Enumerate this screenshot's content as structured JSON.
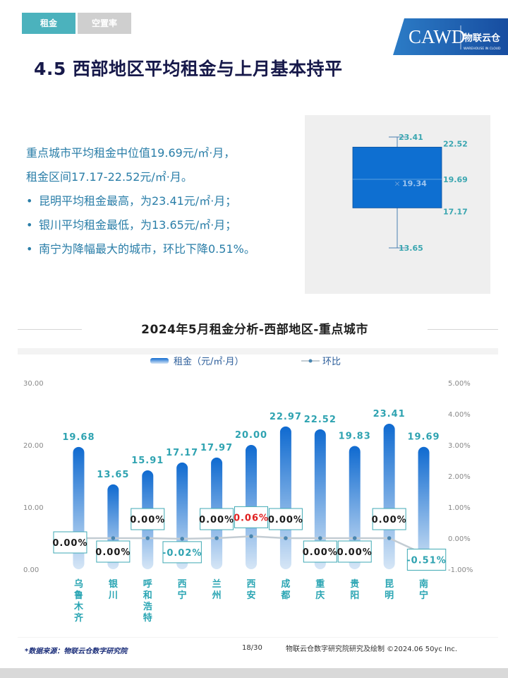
{
  "tabs": [
    {
      "label": "租金"
    },
    {
      "label": "空置率"
    }
  ],
  "logo": {
    "text": "CAWD",
    "sub": "物联云仓",
    "sub2": "WAREHOUSE IN CLOUD"
  },
  "heading": "4.5 西部地区平均租金与上月基本持平",
  "summary": {
    "line1": "重点城市平均租金中位值19.69元/㎡·月，",
    "line2": "租金区间17.17-22.52元/㎡·月。",
    "bullets": [
      "昆明平均租金最高，为23.41元/㎡·月；",
      "银川平均租金最低，为13.65元/㎡·月；",
      "南宁为降幅最大的城市，环比下降0.51%。"
    ]
  },
  "boxplot": {
    "max": 23.41,
    "q3": 22.52,
    "median": 19.69,
    "mean": 19.34,
    "q1": 17.17,
    "min": 13.65,
    "max_label": "23.41",
    "q3_label": "22.52",
    "median_label": "19.69",
    "mean_label": "19.34",
    "q1_label": "17.17",
    "min_label": "13.65",
    "colors": {
      "box": "#0e6fd1",
      "label": "#3aa6b0"
    }
  },
  "section_title": "2024年5月租金分析-西部地区-重点城市",
  "chart_data": {
    "type": "bar",
    "title": "2024年5月租金分析-西部地区-重点城市",
    "categories": [
      "乌鲁木齐",
      "银川",
      "呼和浩特",
      "西宁",
      "兰州",
      "西安",
      "成都",
      "重庆",
      "贵阳",
      "昆明",
      "南宁"
    ],
    "series": [
      {
        "name": "租金（元/㎡·月）",
        "type": "bar",
        "axis": "left",
        "values": [
          19.68,
          13.65,
          15.91,
          17.17,
          17.97,
          20.0,
          22.97,
          22.52,
          19.83,
          23.41,
          19.69
        ],
        "labels": [
          "19.68",
          "13.65",
          "15.91",
          "17.17",
          "17.97",
          "20.00",
          "22.97",
          "22.52",
          "19.83",
          "23.41",
          "19.69"
        ]
      },
      {
        "name": "环比",
        "type": "line",
        "axis": "right",
        "values": [
          0.0,
          0.0,
          0.0,
          -0.02,
          0.0,
          0.06,
          0.0,
          0.0,
          0.0,
          0.0,
          -0.51
        ],
        "labels": [
          "0.00%",
          "0.00%",
          "0.00%",
          "-0.02%",
          "0.00%",
          "0.06%",
          "0.00%",
          "0.00%",
          "0.00%",
          "0.00%",
          "-0.51%"
        ]
      }
    ],
    "y_left": {
      "min": 0,
      "max": 30,
      "ticks": [
        "0.00",
        "10.00",
        "20.00",
        "30.00"
      ]
    },
    "y_right": {
      "min": -1,
      "max": 5,
      "ticks": [
        "-1.00%",
        "0.00%",
        "1.00%",
        "2.00%",
        "3.00%",
        "4.00%",
        "5.00%"
      ]
    },
    "legend_position": "top",
    "grid": false,
    "colors": {
      "bar_top": "#0f6ad0",
      "bar_bottom": "#d6e6f6",
      "line": "#c3ccd3",
      "marker": "#4a86b0",
      "value_label": "#2fa3b1",
      "box_border": "#3fa9b4",
      "highlight": "#e02020",
      "axis_text": "#888888",
      "category": "#2aa5b3"
    }
  },
  "footer": {
    "source": "*数据来源：物联云仓数字研究院",
    "page": "18/30",
    "credit": "物联云仓数字研究院研究及绘制  ©2024.06 50yc Inc."
  }
}
